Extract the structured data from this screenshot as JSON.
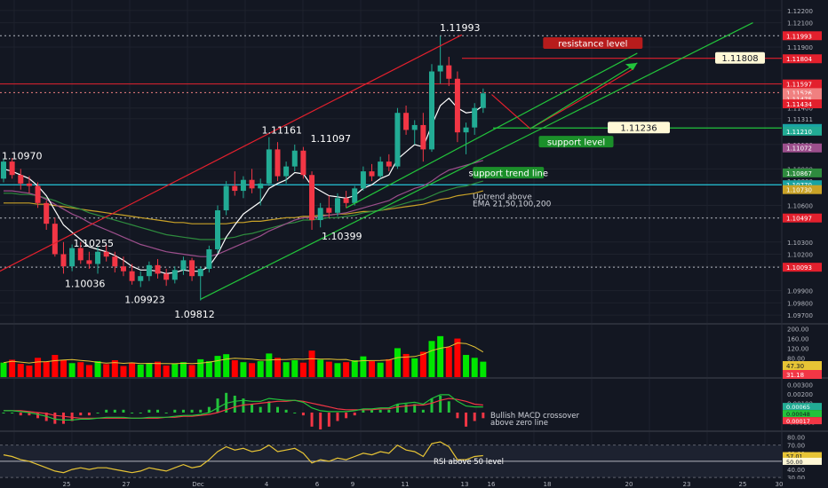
{
  "colors": {
    "bg": "#131722",
    "grid": "#1e222d",
    "up": "#22ab94",
    "down": "#f23645",
    "axis_text": "#b2b5be",
    "red_line": "#e3202d",
    "green_line": "#22c33b",
    "white_ma": "#ffffff",
    "yellow_ma": "#c9a227",
    "purple_ma": "#9c4f8c",
    "green_ma": "#2e8b3e",
    "teal_ma": "#1aa3a3",
    "cyan_level": "#26c6da",
    "vol_up": "#00e600",
    "vol_down": "#ff0000",
    "rsi": "#e7c435",
    "macd": "#22c33b",
    "signal": "#f23645"
  },
  "chart_data": {
    "type": "candlestick",
    "symbol_note": "",
    "x_dates": [
      "25",
      "27",
      "Dec",
      "4",
      "6",
      "9",
      "11",
      "13",
      "16",
      "18",
      "20",
      "23",
      "25",
      "30"
    ],
    "price_axis": {
      "min": 1.0965,
      "max": 1.1225,
      "ticks": [
        "1.12200",
        "1.12100",
        "1.11900",
        "1.11600",
        "1.11400",
        "1.11311",
        "1.11100",
        "1.10900",
        "1.10800",
        "1.10600",
        "1.10500",
        "1.10300",
        "1.10200",
        "1.10100",
        "1.09900",
        "1.09800",
        "1.09700"
      ],
      "tick_values": [
        1.122,
        1.121,
        1.119,
        1.116,
        1.114,
        1.11311,
        1.111,
        1.109,
        1.108,
        1.106,
        1.105,
        1.103,
        1.102,
        1.101,
        1.099,
        1.098,
        1.097
      ]
    },
    "price_badges": [
      {
        "text": "1.11993",
        "value": 1.11993,
        "color": "#e3202d"
      },
      {
        "text": "1.11804",
        "value": 1.11804,
        "color": "#e3202d"
      },
      {
        "text": "1.11597",
        "value": 1.11597,
        "color": "#e3202d"
      },
      {
        "text": "1.11526",
        "value": 1.11526,
        "color": "#f08080"
      },
      {
        "text": "1.11475",
        "value": 1.11475,
        "color": "#f08080"
      },
      {
        "text": "1.11434",
        "value": 1.11434,
        "color": "#e3202d"
      },
      {
        "text": "1.11232",
        "value": 1.11232,
        "color": "#1aa3a3"
      },
      {
        "text": "1.11210",
        "value": 1.1121,
        "color": "#22ab94"
      },
      {
        "text": "1.11072",
        "value": 1.11072,
        "color": "#9c4f8c"
      },
      {
        "text": "1.10867",
        "value": 1.10867,
        "color": "#2e8b3e"
      },
      {
        "text": "1.10770",
        "value": 1.1077,
        "color": "#1aa3a3"
      },
      {
        "text": "1.10730",
        "value": 1.1073,
        "color": "#c9a227"
      },
      {
        "text": "1.10497",
        "value": 1.10497,
        "color": "#e3202d"
      },
      {
        "text": "1.10093",
        "value": 1.10093,
        "color": "#e3202d"
      }
    ],
    "candles": [
      [
        1.1082,
        1.1098,
        1.1079,
        1.1096
      ],
      [
        1.1096,
        1.1099,
        1.1082,
        1.1085
      ],
      [
        1.1085,
        1.109,
        1.1073,
        1.1078
      ],
      [
        1.1078,
        1.1084,
        1.107,
        1.1076
      ],
      [
        1.1076,
        1.1079,
        1.1058,
        1.1062
      ],
      [
        1.1062,
        1.1064,
        1.104,
        1.1045
      ],
      [
        1.1045,
        1.105,
        1.1018,
        1.102
      ],
      [
        1.102,
        1.103,
        1.1004,
        1.101
      ],
      [
        1.101,
        1.1028,
        1.1006,
        1.1025
      ],
      [
        1.1025,
        1.103,
        1.1012,
        1.1015
      ],
      [
        1.1015,
        1.1022,
        1.1008,
        1.1012
      ],
      [
        1.1012,
        1.1026,
        1.1004,
        1.1022
      ],
      [
        1.1022,
        1.1028,
        1.1014,
        1.1018
      ],
      [
        1.1018,
        1.1022,
        1.1005,
        1.101
      ],
      [
        1.101,
        1.1018,
        1.1002,
        1.1006
      ],
      [
        1.1006,
        1.1012,
        1.0995,
        1.0998
      ],
      [
        1.0998,
        1.1006,
        1.0993,
        1.1002
      ],
      [
        1.1002,
        1.1014,
        1.0998,
        1.1011
      ],
      [
        1.1011,
        1.1016,
        1.1,
        1.1004
      ],
      [
        1.1004,
        1.1008,
        1.0994,
        1.0999
      ],
      [
        1.0999,
        1.101,
        1.0996,
        1.1007
      ],
      [
        1.1007,
        1.1018,
        1.1003,
        1.1015
      ],
      [
        1.1015,
        1.1017,
        1.0998,
        1.1002
      ],
      [
        1.1002,
        1.101,
        1.0982,
        1.1008
      ],
      [
        1.1008,
        1.1027,
        1.1005,
        1.1024
      ],
      [
        1.1024,
        1.106,
        1.1021,
        1.1056
      ],
      [
        1.1056,
        1.108,
        1.1052,
        1.1076
      ],
      [
        1.1076,
        1.1088,
        1.1068,
        1.1072
      ],
      [
        1.1072,
        1.1084,
        1.1066,
        1.1081
      ],
      [
        1.1081,
        1.109,
        1.107,
        1.1074
      ],
      [
        1.1074,
        1.1082,
        1.106,
        1.1078
      ],
      [
        1.1078,
        1.1116,
        1.1076,
        1.1106
      ],
      [
        1.1106,
        1.1112,
        1.108,
        1.1084
      ],
      [
        1.1084,
        1.1096,
        1.1078,
        1.1092
      ],
      [
        1.1092,
        1.111,
        1.1088,
        1.1105
      ],
      [
        1.1105,
        1.1108,
        1.1082,
        1.1085
      ],
      [
        1.1085,
        1.1088,
        1.104,
        1.1048
      ],
      [
        1.1048,
        1.1062,
        1.1042,
        1.1058
      ],
      [
        1.1058,
        1.1068,
        1.105,
        1.1054
      ],
      [
        1.1054,
        1.107,
        1.1051,
        1.1066
      ],
      [
        1.1066,
        1.1072,
        1.1058,
        1.1062
      ],
      [
        1.1062,
        1.1076,
        1.106,
        1.1074
      ],
      [
        1.1074,
        1.1092,
        1.1072,
        1.1088
      ],
      [
        1.1088,
        1.1094,
        1.108,
        1.1084
      ],
      [
        1.1084,
        1.11,
        1.1082,
        1.1096
      ],
      [
        1.1096,
        1.1102,
        1.1088,
        1.1092
      ],
      [
        1.1092,
        1.114,
        1.109,
        1.1136
      ],
      [
        1.1136,
        1.1142,
        1.1118,
        1.1122
      ],
      [
        1.1122,
        1.113,
        1.111,
        1.1126
      ],
      [
        1.1126,
        1.1136,
        1.1096,
        1.1106
      ],
      [
        1.1106,
        1.1176,
        1.1104,
        1.117
      ],
      [
        1.117,
        1.1199,
        1.116,
        1.1175
      ],
      [
        1.1175,
        1.1182,
        1.1158,
        1.1164
      ],
      [
        1.1164,
        1.117,
        1.1112,
        1.112
      ],
      [
        1.112,
        1.1128,
        1.1102,
        1.1124
      ],
      [
        1.1124,
        1.1144,
        1.1118,
        1.114
      ],
      [
        1.114,
        1.1156,
        1.1136,
        1.1152
      ]
    ],
    "ema_white": [
      1.109,
      1.1088,
      1.1085,
      1.1082,
      1.1076,
      1.1068,
      1.1056,
      1.1044,
      1.1038,
      1.1032,
      1.1026,
      1.1024,
      1.1022,
      1.1019,
      1.1015,
      1.101,
      1.1007,
      1.1007,
      1.1006,
      1.1004,
      1.1005,
      1.1007,
      1.1006,
      1.1006,
      1.101,
      1.102,
      1.1034,
      1.1044,
      1.1053,
      1.1058,
      1.1063,
      1.1074,
      1.1078,
      1.1081,
      1.1087,
      1.1086,
      1.1076,
      1.1072,
      1.1068,
      1.1067,
      1.1066,
      1.1068,
      1.1074,
      1.1077,
      1.1082,
      1.1085,
      1.1098,
      1.1104,
      1.111,
      1.1108,
      1.1126,
      1.1142,
      1.1148,
      1.114,
      1.1136,
      1.1137,
      1.1142
    ],
    "ema_purple": [
      1.1072,
      1.1072,
      1.1071,
      1.107,
      1.1068,
      1.1065,
      1.1061,
      1.1057,
      1.1053,
      1.105,
      1.1046,
      1.1043,
      1.104,
      1.1037,
      1.1034,
      1.1031,
      1.1028,
      1.1026,
      1.1024,
      1.1022,
      1.1021,
      1.102,
      1.1019,
      1.1018,
      1.1018,
      1.102,
      1.1023,
      1.1026,
      1.1029,
      1.1032,
      1.1035,
      1.1039,
      1.1042,
      1.1045,
      1.1048,
      1.105,
      1.105,
      1.1051,
      1.1052,
      1.1053,
      1.1054,
      1.1056,
      1.1058,
      1.106,
      1.1062,
      1.1064,
      1.1068,
      1.1071,
      1.1074,
      1.1076,
      1.108,
      1.1085,
      1.1089,
      1.1091,
      1.1093,
      1.1095,
      1.1097
    ],
    "ema_green": [
      1.107,
      1.107,
      1.1069,
      1.1069,
      1.1068,
      1.1066,
      1.1064,
      1.1061,
      1.1059,
      1.1057,
      1.1054,
      1.1052,
      1.105,
      1.1048,
      1.1046,
      1.1044,
      1.1042,
      1.104,
      1.1038,
      1.1036,
      1.1035,
      1.1034,
      1.1033,
      1.1032,
      1.1032,
      1.1032,
      1.1033,
      1.1034,
      1.1036,
      1.1037,
      1.1039,
      1.1041,
      1.1043,
      1.1045,
      1.1046,
      1.1048,
      1.1048,
      1.1049,
      1.105,
      1.105,
      1.1051,
      1.1052,
      1.1054,
      1.1055,
      1.1056,
      1.1058,
      1.106,
      1.1062,
      1.1064,
      1.1065,
      1.1068,
      1.1071,
      1.1073,
      1.1075,
      1.1076,
      1.1078,
      1.108
    ],
    "ema_yellow": [
      1.1062,
      1.1062,
      1.1062,
      1.1062,
      1.1061,
      1.1061,
      1.106,
      1.1059,
      1.1058,
      1.1057,
      1.1056,
      1.1055,
      1.1054,
      1.1053,
      1.1052,
      1.1051,
      1.105,
      1.1049,
      1.1048,
      1.1047,
      1.1046,
      1.1046,
      1.1045,
      1.1045,
      1.1045,
      1.1045,
      1.1045,
      1.1046,
      1.1046,
      1.1047,
      1.1047,
      1.1048,
      1.1049,
      1.105,
      1.105,
      1.1051,
      1.1051,
      1.1052,
      1.1052,
      1.1053,
      1.1053,
      1.1054,
      1.1055,
      1.1055,
      1.1056,
      1.1057,
      1.1058,
      1.1059,
      1.106,
      1.1061,
      1.1063,
      1.1065,
      1.1066,
      1.1068,
      1.1069,
      1.107,
      1.1072
    ],
    "annotations": {
      "high_label": "1.11993",
      "label_11161": "1.11161",
      "label_11097": "1.11097",
      "label_10970": "1.10970",
      "label_10399": "1.10399",
      "label_10255": "1.10255",
      "label_10036": "1.10036",
      "label_09923": "1.09923",
      "label_09812": "1.09812",
      "resistance": "resistance level",
      "resistance_price": "1.11808",
      "support": "support level",
      "support_price": "1.11236",
      "support_trend": "support trend line",
      "uptrend": "Uptrend above",
      "uptrend2": "EMA 21,50,100,200",
      "macd_note": "Bullish MACD crossover",
      "macd_note2": "above zero line",
      "rsi_note": "RSI above 50 level"
    },
    "volume": {
      "ticks": [
        "200.00",
        "160.00",
        "120.00",
        "80.00",
        "40.00"
      ],
      "tick_values": [
        200,
        160,
        120,
        80,
        40
      ],
      "max": 210,
      "badges": [
        "47.30",
        "31.18"
      ],
      "values": [
        60,
        72,
        55,
        48,
        80,
        65,
        92,
        70,
        58,
        62,
        50,
        66,
        54,
        70,
        46,
        60,
        52,
        58,
        64,
        48,
        56,
        62,
        50,
        74,
        66,
        88,
        95,
        70,
        62,
        58,
        66,
        98,
        80,
        62,
        70,
        60,
        110,
        72,
        64,
        58,
        62,
        70,
        86,
        66,
        60,
        74,
        120,
        96,
        78,
        105,
        150,
        170,
        125,
        160,
        92,
        80,
        64
      ]
    },
    "macd": {
      "ticks": [
        "0.00300",
        "0.00200",
        "0.00100",
        "0.00000",
        "-0.00100"
      ],
      "tick_values": [
        0.003,
        0.002,
        0.001,
        0,
        -0.001
      ],
      "min": -0.0018,
      "max": 0.0035,
      "badges": [
        "0.00065",
        "0.00048",
        "0.00017"
      ],
      "macd": [
        0.0002,
        0.0002,
        0.0001,
        0.0,
        -0.0002,
        -0.0004,
        -0.0007,
        -0.0008,
        -0.0008,
        -0.0007,
        -0.0007,
        -0.0006,
        -0.0005,
        -0.0005,
        -0.0005,
        -0.0006,
        -0.0006,
        -0.0005,
        -0.0005,
        -0.0005,
        -0.0004,
        -0.0003,
        -0.0003,
        -0.0002,
        0.0,
        0.0005,
        0.001,
        0.0012,
        0.0013,
        0.0012,
        0.0012,
        0.0015,
        0.0014,
        0.0013,
        0.0013,
        0.0011,
        0.0005,
        0.0002,
        0.0001,
        0.0001,
        0.0001,
        0.0002,
        0.0004,
        0.0004,
        0.0005,
        0.0005,
        0.0009,
        0.001,
        0.0011,
        0.0009,
        0.0015,
        0.0019,
        0.0019,
        0.0012,
        0.0007,
        0.0006,
        0.0006
      ],
      "signal": [
        0.0002,
        0.0002,
        0.0002,
        0.0001,
        0.0,
        -0.0001,
        -0.0003,
        -0.0004,
        -0.0005,
        -0.0006,
        -0.0006,
        -0.0006,
        -0.0006,
        -0.0006,
        -0.0006,
        -0.0006,
        -0.0006,
        -0.0006,
        -0.0006,
        -0.0005,
        -0.0005,
        -0.0004,
        -0.0004,
        -0.0003,
        -0.0002,
        0.0,
        0.0003,
        0.0006,
        0.0008,
        0.0009,
        0.001,
        0.0011,
        0.0012,
        0.0012,
        0.0013,
        0.0012,
        0.001,
        0.0008,
        0.0006,
        0.0004,
        0.0003,
        0.0003,
        0.0003,
        0.0003,
        0.0004,
        0.0004,
        0.0006,
        0.0007,
        0.0008,
        0.0008,
        0.001,
        0.0013,
        0.0015,
        0.0014,
        0.0012,
        0.0009,
        0.0008
      ]
    },
    "rsi": {
      "ticks": [
        "80.00",
        "70.00",
        "60.00",
        "50.00",
        "40.00",
        "30.00"
      ],
      "tick_values": [
        80,
        70,
        60,
        50,
        40,
        30
      ],
      "min": 28,
      "max": 85,
      "badges": [
        "57.01",
        "50.00"
      ],
      "values": [
        58,
        56,
        52,
        50,
        46,
        42,
        38,
        36,
        40,
        42,
        40,
        42,
        42,
        40,
        38,
        36,
        38,
        42,
        40,
        38,
        42,
        46,
        42,
        44,
        52,
        62,
        68,
        64,
        66,
        62,
        64,
        70,
        62,
        64,
        66,
        60,
        48,
        52,
        50,
        54,
        52,
        56,
        60,
        58,
        62,
        60,
        70,
        64,
        62,
        56,
        72,
        74,
        68,
        52,
        52,
        56,
        57
      ]
    }
  }
}
